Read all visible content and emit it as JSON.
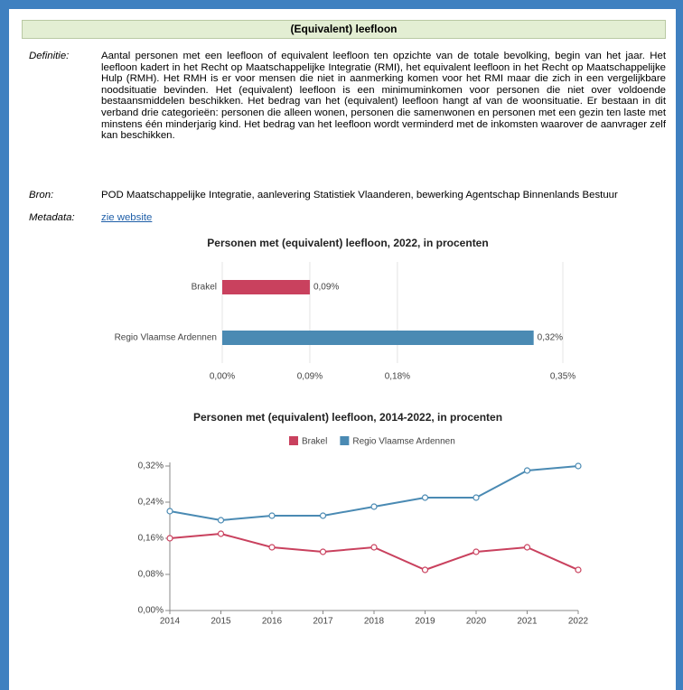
{
  "header": {
    "title": "(Equivalent) leefloon"
  },
  "rows": [
    {
      "label": "Definitie:",
      "text": "Aantal personen met een leefloon of equivalent leefloon ten opzichte van de totale bevolking, begin van het jaar. Het leefloon kadert in het Recht op Maatschappelijke Integratie (RMI), het equivalent leefloon in het Recht op Maatschappelijke Hulp (RMH). Het RMH is er voor mensen die niet in aanmerking komen voor het RMI maar die zich in een vergelijkbare noodsituatie bevinden. Het (equivalent) leefloon is een minimuminkomen voor personen die niet over voldoende bestaansmiddelen beschikken. Het bedrag van het (equivalent) leefloon hangt af van de woonsituatie. Er bestaan in dit verband drie categorieën: personen die alleen wonen, personen die samenwonen en personen met een gezin ten laste met minstens één minderjarig kind. Het bedrag van het leefloon wordt verminderd met de inkomsten waarover de aanvrager zelf kan beschikken."
    },
    {
      "label": "Bron:",
      "text": "POD Maatschappelijke Integratie, aanlevering Statistiek Vlaanderen, bewerking Agentschap Binnenlands Bestuur"
    },
    {
      "label": "Metadata:",
      "link": "zie website"
    }
  ],
  "chart_data": [
    {
      "type": "hbar",
      "title": "Personen met (equivalent) leefloon, 2022, in procenten",
      "categories": [
        "Brakel",
        "Regio Vlaamse Ardennen"
      ],
      "values": [
        0.09,
        0.32
      ],
      "value_labels": [
        "0,09%",
        "0,32%"
      ],
      "colors": [
        "#c9415e",
        "#4a8ab3"
      ],
      "xlim": [
        0,
        0.35
      ],
      "xticks": [
        {
          "value": 0,
          "label": "0,00%"
        },
        {
          "value": 0.09,
          "label": "0,09%"
        },
        {
          "value": 0.18,
          "label": "0,18%"
        },
        {
          "value": 0.35,
          "label": "0,35%"
        }
      ],
      "grid": true
    },
    {
      "type": "line",
      "title": "Personen met (equivalent) leefloon, 2014-2022, in procenten",
      "x": [
        2014,
        2015,
        2016,
        2017,
        2018,
        2019,
        2020,
        2021,
        2022
      ],
      "xlim": [
        2014,
        2022
      ],
      "xticks": [
        2014,
        2015,
        2016,
        2017,
        2018,
        2019,
        2020,
        2021,
        2022
      ],
      "series": [
        {
          "name": "Brakel",
          "color": "#c9415e",
          "values": [
            0.16,
            0.17,
            0.14,
            0.13,
            0.14,
            0.09,
            0.13,
            0.14,
            0.09
          ]
        },
        {
          "name": "Regio Vlaamse Ardennen",
          "color": "#4a8ab3",
          "values": [
            0.22,
            0.2,
            0.21,
            0.21,
            0.23,
            0.25,
            0.25,
            0.31,
            0.32
          ]
        }
      ],
      "ylim": [
        0,
        0.32
      ],
      "yticks": [
        {
          "value": 0,
          "label": "0,00%"
        },
        {
          "value": 0.08,
          "label": "0,08%"
        },
        {
          "value": 0.16,
          "label": "0,16%"
        },
        {
          "value": 0.24,
          "label": "0,24%"
        },
        {
          "value": 0.32,
          "label": "0,32%"
        }
      ],
      "legend": "top",
      "grid": false
    }
  ]
}
